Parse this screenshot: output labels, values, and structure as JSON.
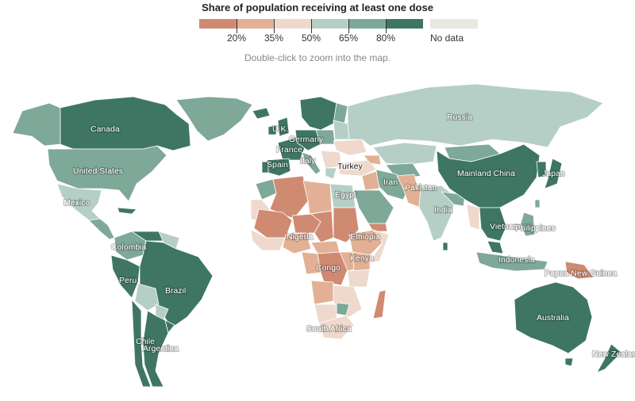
{
  "title": "Share of population receiving at least one dose",
  "hint": "Double-click to zoom into the map.",
  "legend": {
    "colors": [
      "#cf8a72",
      "#e2b195",
      "#eed9cc",
      "#b5cfc6",
      "#7ea898",
      "#3e7663"
    ],
    "ticks": [
      "20%",
      "35%",
      "50%",
      "65%",
      "80%"
    ],
    "nodata_label": "No data",
    "nodata_color": "#e9e9e2"
  },
  "palette": {
    "c1": "#cf8a72",
    "c2": "#e2b195",
    "c3": "#eed9cc",
    "c4": "#b5cfc6",
    "c5": "#7ea898",
    "c6": "#3e7663",
    "nodata": "#e9e9e2"
  },
  "labels": {
    "canada": "Canada",
    "united_states": "United States",
    "mexico": "Mexico",
    "colombia": "Colombia",
    "peru": "Peru",
    "brazil": "Brazil",
    "chile": "Chile",
    "argentina": "Argentina",
    "uk": "U.K.",
    "germany": "Germany",
    "france": "France",
    "spain": "Spain",
    "italy": "Italy",
    "turkey": "Turkey",
    "russia": "Russia",
    "egypt": "Egypt",
    "iran": "Iran",
    "pakistan": "Pakistan",
    "india": "India",
    "mainland_china": "Mainland China",
    "japan": "Japan",
    "vietnam": "Vietnam",
    "philippines": "Philippines",
    "indonesia": "Indonesia",
    "papua_new_guinea": "Papua New Guinea",
    "australia": "Australia",
    "new_zealand": "New Zealand",
    "nigeria": "Nigeria",
    "ethiopia": "Ethiopia",
    "kenya": "Kenya",
    "congo": "Congo",
    "south_africa": "South Africa"
  }
}
